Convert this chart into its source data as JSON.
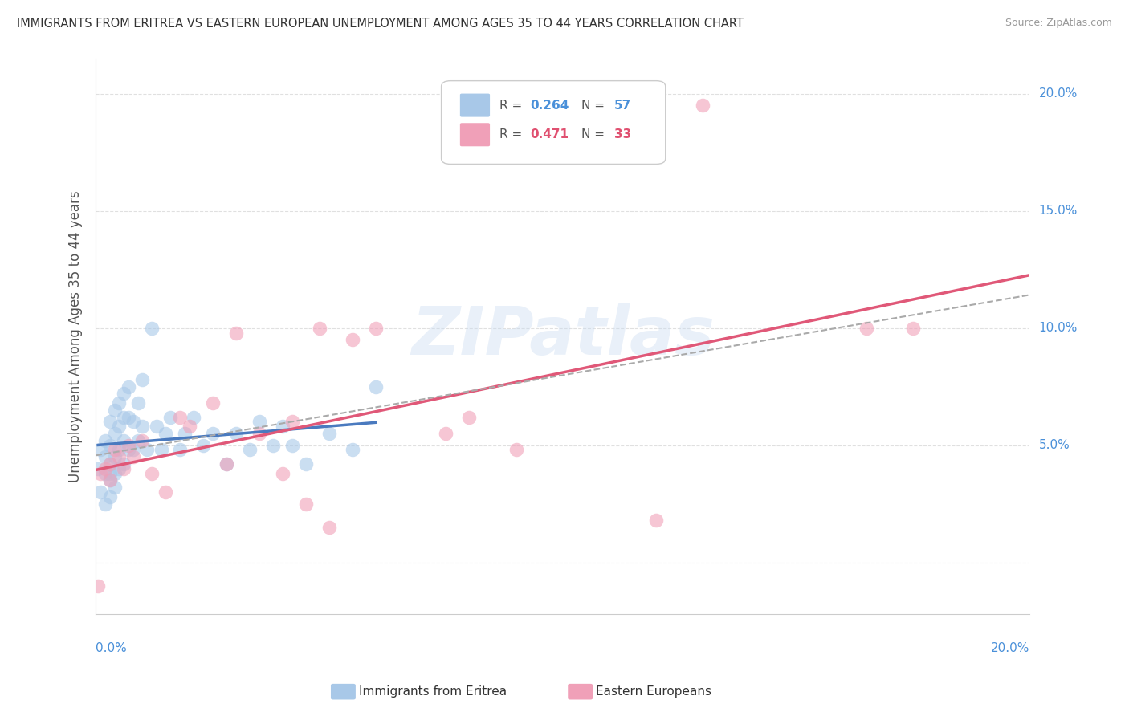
{
  "title": "IMMIGRANTS FROM ERITREA VS EASTERN EUROPEAN UNEMPLOYMENT AMONG AGES 35 TO 44 YEARS CORRELATION CHART",
  "source": "Source: ZipAtlas.com",
  "ylabel": "Unemployment Among Ages 35 to 44 years",
  "xlim": [
    0,
    0.2
  ],
  "ylim": [
    -0.022,
    0.215
  ],
  "ytick_vals": [
    0.0,
    0.05,
    0.1,
    0.15,
    0.2
  ],
  "ytick_labels": [
    "",
    "5.0%",
    "10.0%",
    "15.0%",
    "20.0%"
  ],
  "blue_label": "Immigrants from Eritrea",
  "pink_label": "Eastern Europeans",
  "blue_R": "0.264",
  "blue_N": "57",
  "pink_R": "0.471",
  "pink_N": "33",
  "blue_color": "#a8c8e8",
  "pink_color": "#f0a0b8",
  "trend_blue_color": "#4a7abf",
  "trend_pink_color": "#e05878",
  "trend_gray_color": "#aaaaaa",
  "watermark": "ZIPatlas",
  "background_color": "#ffffff",
  "grid_color": "#e0e0e0",
  "blue_scatter_x": [
    0.0005,
    0.001,
    0.001,
    0.002,
    0.002,
    0.002,
    0.002,
    0.003,
    0.003,
    0.003,
    0.003,
    0.003,
    0.003,
    0.004,
    0.004,
    0.004,
    0.004,
    0.004,
    0.005,
    0.005,
    0.005,
    0.005,
    0.006,
    0.006,
    0.006,
    0.006,
    0.007,
    0.007,
    0.007,
    0.008,
    0.008,
    0.009,
    0.009,
    0.01,
    0.01,
    0.011,
    0.012,
    0.013,
    0.014,
    0.015,
    0.016,
    0.018,
    0.019,
    0.021,
    0.023,
    0.025,
    0.028,
    0.03,
    0.033,
    0.035,
    0.038,
    0.04,
    0.042,
    0.045,
    0.05,
    0.055,
    0.06
  ],
  "blue_scatter_y": [
    0.04,
    0.048,
    0.03,
    0.052,
    0.038,
    0.045,
    0.025,
    0.06,
    0.05,
    0.042,
    0.035,
    0.028,
    0.038,
    0.065,
    0.055,
    0.045,
    0.038,
    0.032,
    0.068,
    0.058,
    0.048,
    0.04,
    0.072,
    0.062,
    0.052,
    0.042,
    0.075,
    0.062,
    0.048,
    0.06,
    0.048,
    0.068,
    0.052,
    0.078,
    0.058,
    0.048,
    0.1,
    0.058,
    0.048,
    0.055,
    0.062,
    0.048,
    0.055,
    0.062,
    0.05,
    0.055,
    0.042,
    0.055,
    0.048,
    0.06,
    0.05,
    0.058,
    0.05,
    0.042,
    0.055,
    0.048,
    0.075
  ],
  "pink_scatter_x": [
    0.0005,
    0.001,
    0.002,
    0.003,
    0.003,
    0.004,
    0.005,
    0.006,
    0.007,
    0.008,
    0.01,
    0.012,
    0.015,
    0.018,
    0.02,
    0.025,
    0.028,
    0.03,
    0.035,
    0.04,
    0.042,
    0.045,
    0.048,
    0.05,
    0.055,
    0.06,
    0.075,
    0.08,
    0.09,
    0.12,
    0.13,
    0.165,
    0.175
  ],
  "pink_scatter_y": [
    -0.01,
    0.038,
    0.04,
    0.042,
    0.035,
    0.048,
    0.045,
    0.04,
    0.05,
    0.045,
    0.052,
    0.038,
    0.03,
    0.062,
    0.058,
    0.068,
    0.042,
    0.098,
    0.055,
    0.038,
    0.06,
    0.025,
    0.1,
    0.015,
    0.095,
    0.1,
    0.055,
    0.062,
    0.048,
    0.018,
    0.195,
    0.1,
    0.1
  ]
}
